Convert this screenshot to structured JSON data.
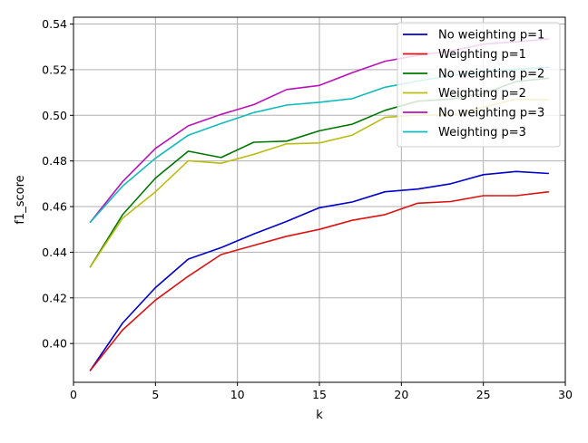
{
  "chart_data": {
    "type": "line",
    "title": "",
    "xlabel": "k",
    "ylabel": "f1_score",
    "xlim": [
      0,
      30
    ],
    "ylim": [
      0.383,
      0.543
    ],
    "grid": true,
    "legend_position": "top-right",
    "x": [
      1,
      3,
      5,
      7,
      9,
      11,
      13,
      15,
      17,
      19,
      21,
      23,
      25,
      27,
      29
    ],
    "x_ticks": [
      0,
      5,
      10,
      15,
      20,
      25,
      30
    ],
    "y_ticks": [
      0.4,
      0.42,
      0.44,
      0.46,
      0.48,
      0.5,
      0.52,
      0.54
    ],
    "x_tick_labels": [
      "0",
      "5",
      "10",
      "15",
      "20",
      "25",
      "30"
    ],
    "y_tick_labels": [
      "0.40",
      "0.42",
      "0.44",
      "0.46",
      "0.48",
      "0.50",
      "0.52",
      "0.54"
    ],
    "series": [
      {
        "name": "No weighting p=1",
        "color": "#0000cc",
        "values": [
          0.388,
          0.409,
          0.4245,
          0.437,
          0.442,
          0.448,
          0.4535,
          0.4595,
          0.462,
          0.4665,
          0.4677,
          0.47,
          0.474,
          0.4754,
          0.4745
        ]
      },
      {
        "name": "Weighting p=1",
        "color": "#dd1111",
        "values": [
          0.388,
          0.406,
          0.419,
          0.4295,
          0.439,
          0.443,
          0.447,
          0.45,
          0.454,
          0.4565,
          0.4615,
          0.4622,
          0.4648,
          0.4648,
          0.4665
        ]
      },
      {
        "name": "No weighting p=2",
        "color": "#007700",
        "values": [
          0.4333,
          0.4565,
          0.4725,
          0.4843,
          0.4815,
          0.4882,
          0.4887,
          0.4932,
          0.4961,
          0.5022,
          0.5062,
          0.5071,
          0.5095,
          0.5148,
          0.5163
        ]
      },
      {
        "name": "Weighting p=2",
        "color": "#bbbb11",
        "values": [
          0.4333,
          0.455,
          0.4665,
          0.4801,
          0.479,
          0.4829,
          0.4875,
          0.4879,
          0.4913,
          0.4991,
          0.5001,
          0.5001,
          0.5036,
          0.5071,
          0.5068
        ]
      },
      {
        "name": "No weighting p=3",
        "color": "#bb11bb",
        "values": [
          0.453,
          0.471,
          0.4855,
          0.4954,
          0.5004,
          0.5047,
          0.5113,
          0.5131,
          0.5187,
          0.5237,
          0.5263,
          0.5282,
          0.5312,
          0.5322,
          0.5335
        ]
      },
      {
        "name": "Weighting p=3",
        "color": "#11bbbb",
        "values": [
          0.453,
          0.469,
          0.4812,
          0.4913,
          0.4964,
          0.5012,
          0.5045,
          0.5057,
          0.5073,
          0.5123,
          0.515,
          0.5174,
          0.5192,
          0.5202,
          0.5211
        ]
      }
    ]
  }
}
